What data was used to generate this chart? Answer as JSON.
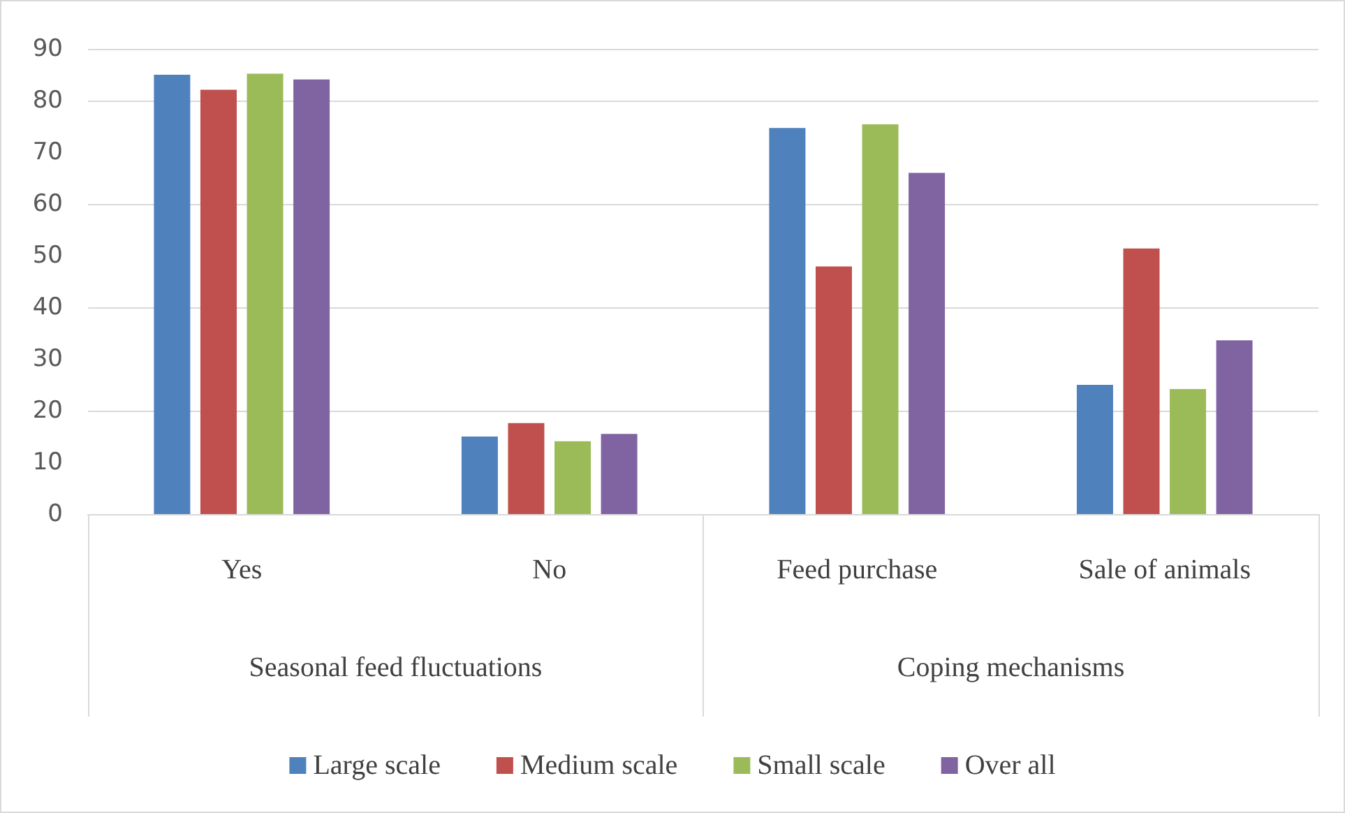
{
  "chart_data": {
    "type": "bar",
    "categories": [
      "Yes",
      "No",
      "Feed purchase",
      "Sale of animals"
    ],
    "annotations": [
      "Seasonal feed fluctuations",
      "Coping mechanisms"
    ],
    "series": [
      {
        "name": "Large scale",
        "color": "#4f81bd",
        "values": [
          85,
          15,
          74.7,
          25
        ]
      },
      {
        "name": "Medium scale",
        "color": "#c0504d",
        "values": [
          82.1,
          17.6,
          47.9,
          51.4
        ]
      },
      {
        "name": "Small scale",
        "color": "#9bbb59",
        "values": [
          85.2,
          14.1,
          75.4,
          24.2
        ]
      },
      {
        "name": "Over all",
        "color": "#8064a2",
        "values": [
          84.1,
          15.5,
          66,
          33.6
        ]
      }
    ],
    "ylim": [
      0,
      90
    ],
    "yticks": [
      0,
      10,
      20,
      30,
      40,
      50,
      60,
      70,
      80,
      90
    ],
    "grid": "y",
    "legend": "bottom"
  }
}
